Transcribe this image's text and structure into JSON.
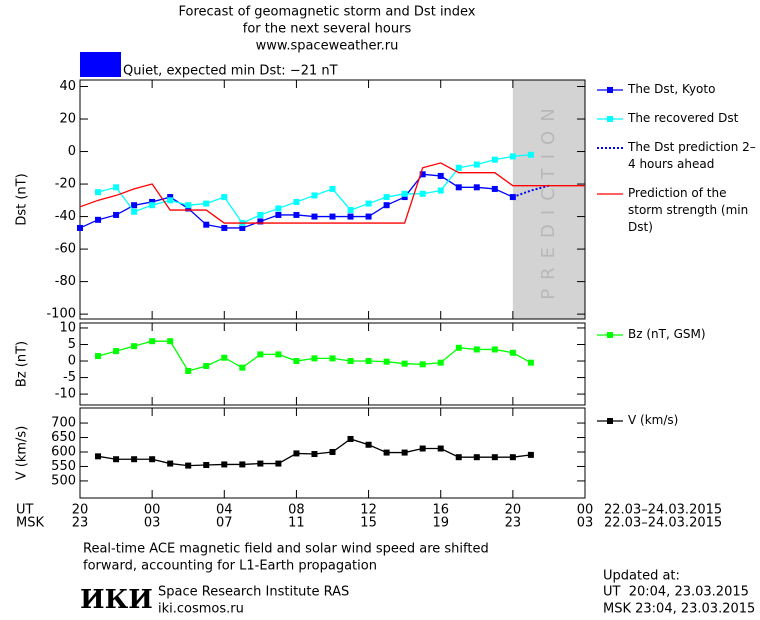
{
  "header": {
    "lines": [
      "Forecast of geomagnetic storm and Dst index",
      "for the next several hours",
      "www.spaceweather.ru"
    ]
  },
  "status": {
    "color": "#0000ff",
    "label": "Quiet, expected min Dst: −21 nT"
  },
  "x_axis": {
    "xlim": [
      20,
      48
    ],
    "xticks": [
      20,
      {
        "value": 24,
        "label": "00"
      },
      {
        "value": 28,
        "label": "04"
      },
      {
        "value": 32,
        "label": "08"
      },
      {
        "value": 36,
        "label": "12"
      },
      {
        "value": 40,
        "label": "16"
      },
      {
        "value": 44,
        "label": "20"
      },
      {
        "value": 48,
        "label": "00"
      }
    ],
    "msk_labels": [
      "23",
      "03",
      "07",
      "11",
      "15",
      "19",
      "23",
      "03"
    ],
    "ut_label": "UT",
    "msk_label": "MSK",
    "date_range": "22.03–24.03.2015"
  },
  "chart_data": [
    {
      "type": "line",
      "ylabel": "Dst (nT)",
      "ylim": [
        -103,
        44
      ],
      "yticks": [
        40,
        20,
        0,
        -20,
        -40,
        -60,
        -80,
        -100
      ],
      "shade": {
        "from": 44,
        "to": 48,
        "label": "PREDICTION",
        "color": "#d3d3d3"
      },
      "series": [
        {
          "name": "The Dst, Kyoto",
          "color": "#0000ff",
          "marker": "square",
          "style": "solid",
          "x": [
            20,
            21,
            22,
            23,
            24,
            25,
            26,
            27,
            28,
            29,
            30,
            31,
            32,
            33,
            34,
            35,
            36,
            37,
            38,
            39,
            40,
            41,
            42,
            43,
            44
          ],
          "values": [
            -47,
            -42,
            -39,
            -33,
            -31,
            -28,
            -35,
            -45,
            -47,
            -47,
            -43,
            -39,
            -39,
            -40,
            -40,
            -40,
            -40,
            -33,
            -28,
            -14,
            -15,
            -22,
            -22,
            -23,
            -28
          ]
        },
        {
          "name": "The recovered Dst",
          "color": "#00ffff",
          "marker": "square",
          "style": "solid",
          "x": [
            21,
            22,
            23,
            24,
            25,
            26,
            27,
            28,
            29,
            30,
            31,
            32,
            33,
            34,
            35,
            36,
            37,
            38,
            39,
            40,
            41,
            42,
            43,
            44,
            45
          ],
          "values": [
            -25,
            -22,
            -37,
            -33,
            -30,
            -33,
            -32,
            -28,
            -44,
            -39,
            -35,
            -31,
            -27,
            -23,
            -36,
            -32,
            -28,
            -26,
            -26,
            -24,
            -10,
            -8,
            -5,
            -3,
            -2
          ]
        },
        {
          "name": "The Dst prediction 2–4 hours ahead",
          "color": "#0000ff",
          "marker": "none",
          "style": "dotted",
          "x": [
            44,
            45,
            46
          ],
          "values": [
            -28,
            -24,
            -21
          ]
        },
        {
          "name": "Prediction of the storm strength (min Dst)",
          "color": "#ff0000",
          "marker": "none",
          "style": "solid",
          "x": [
            20,
            21,
            22,
            23,
            24,
            25,
            26,
            27,
            28,
            29,
            30,
            31,
            32,
            33,
            34,
            35,
            36,
            37,
            38,
            39,
            40,
            41,
            42,
            43,
            44,
            48
          ],
          "values": [
            -34,
            -30,
            -27,
            -23,
            -20,
            -36,
            -36,
            -36,
            -44,
            -44,
            -44,
            -44,
            -44,
            -44,
            -44,
            -44,
            -44,
            -44,
            -44,
            -10,
            -7,
            -13,
            -13,
            -13,
            -21,
            -21
          ]
        }
      ]
    },
    {
      "type": "line",
      "ylabel": "Bz (nT)",
      "ylim": [
        -13.3,
        11.5
      ],
      "yticks": [
        10,
        5,
        0,
        -5,
        -10
      ],
      "series": [
        {
          "name": "Bz (nT, GSM)",
          "color": "#00ff00",
          "marker": "square",
          "style": "solid",
          "x": [
            21,
            22,
            23,
            24,
            25,
            26,
            27,
            28,
            29,
            30,
            31,
            32,
            33,
            34,
            35,
            36,
            37,
            38,
            39,
            40,
            41,
            42,
            43,
            44,
            45
          ],
          "values": [
            1.5,
            3,
            4.5,
            6,
            6,
            -3,
            -1.5,
            1,
            -2,
            2,
            2,
            0,
            0.8,
            0.8,
            0,
            0,
            -0.2,
            -0.8,
            -1,
            -0.5,
            4,
            3.5,
            3.5,
            2.5,
            -0.5
          ]
        }
      ]
    },
    {
      "type": "line",
      "ylabel": "V (km/s)",
      "ylim": [
        441,
        752
      ],
      "yticks": [
        700,
        650,
        600,
        550,
        500
      ],
      "series": [
        {
          "name": "V (km/s)",
          "color": "#000000",
          "marker": "square",
          "style": "solid",
          "x": [
            21,
            22,
            23,
            24,
            25,
            26,
            27,
            28,
            29,
            30,
            31,
            32,
            33,
            34,
            35,
            36,
            37,
            38,
            39,
            40,
            41,
            42,
            43,
            44,
            45
          ],
          "values": [
            585,
            575,
            575,
            575,
            560,
            553,
            555,
            557,
            557,
            560,
            560,
            595,
            593,
            600,
            645,
            625,
            598,
            598,
            612,
            612,
            582,
            582,
            582,
            582,
            590
          ]
        }
      ]
    }
  ],
  "footer": {
    "note": [
      "Real-time ACE magnetic field and solar wind speed are shifted",
      "forward, accounting for L1-Earth propagation"
    ],
    "logo": "ИКИ",
    "institute": "Space Research Institute RAS",
    "site": "iki.cosmos.ru",
    "updated": [
      "Updated at:",
      "UT  20:04, 23.03.2015",
      "MSK 23:04, 23.03.2015"
    ]
  }
}
